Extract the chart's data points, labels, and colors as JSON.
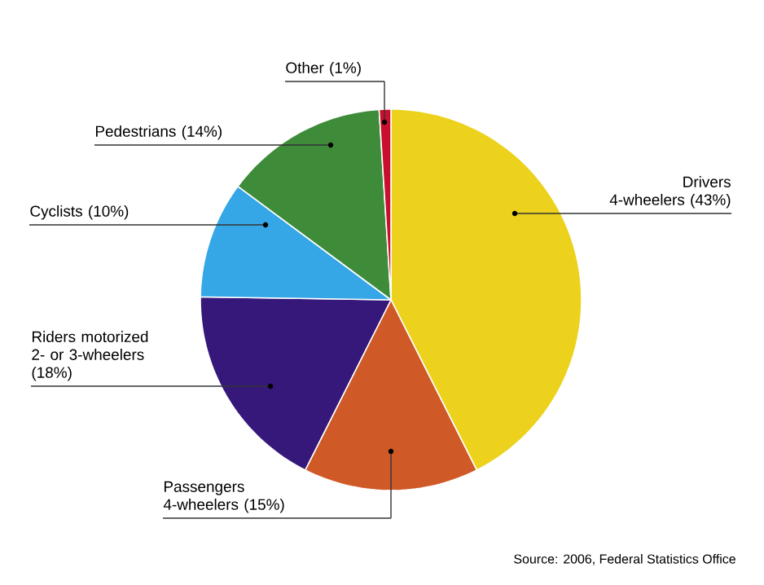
{
  "chart_data": {
    "type": "pie",
    "categories": [
      "Drivers 4-wheelers (43%)",
      "Passengers 4-wheelers (15%)",
      "Riders motorized 2- or 3-wheelers (18%)",
      "Cyclists (10%)",
      "Pedestrians (14%)",
      "Other (1%)"
    ],
    "values": [
      43,
      15,
      18,
      10,
      14,
      1
    ],
    "colors": [
      "#ecd21c",
      "#cf5a27",
      "#35187a",
      "#35a6e6",
      "#3e8c3a",
      "#c8102e"
    ],
    "annotations": [
      "Source: 2006, Federal Statistics Office"
    ]
  }
}
